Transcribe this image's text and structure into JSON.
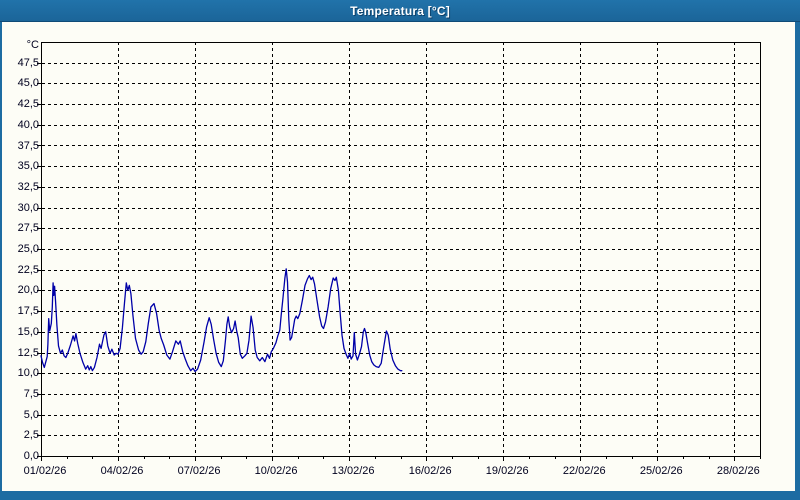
{
  "window": {
    "title": "Temperatura [°C]"
  },
  "colors": {
    "frame_blue": "#1d6ca2",
    "titlebar_border": "#0f4b77",
    "title_text": "#ffffff",
    "content_bg": "#fdfdf6",
    "grid": "#000000",
    "axis": "#000000",
    "tick_text": "#00001e",
    "series_line": "#0000a8"
  },
  "chart_data": {
    "type": "line",
    "title": "Temperatura [°C]",
    "unit_label": "°C",
    "grid": "dashed",
    "legend": "none",
    "y_axis": {
      "min": 0,
      "max": 50,
      "tick_step": 2.5,
      "tick_values": [
        47.5,
        45,
        42.5,
        40,
        37.5,
        35,
        32.5,
        30,
        27.5,
        25,
        22.5,
        20,
        17.5,
        15,
        12.5,
        10,
        7.5,
        5,
        2.5,
        0
      ],
      "tick_labels": [
        "47,5",
        "45,0",
        "42,5",
        "40,0",
        "37,5",
        "35,0",
        "32,5",
        "30,0",
        "27,5",
        "25,0",
        "22,5",
        "20,0",
        "17,5",
        "15,0",
        "12,5",
        "10,0",
        "7,5",
        "5,0",
        "2,5",
        "0,0"
      ]
    },
    "x_axis": {
      "min_day": 0,
      "max_day": 28,
      "minor_tick_every_days": 1,
      "major_tick_every_days": 3,
      "major_tick_days": [
        0,
        3,
        6,
        9,
        12,
        15,
        18,
        21,
        24,
        27
      ],
      "tick_labels": [
        "01/02/26",
        "04/02/26",
        "07/02/26",
        "10/02/26",
        "13/02/26",
        "16/02/26",
        "19/02/26",
        "22/02/26",
        "25/02/26",
        "28/02/26"
      ]
    },
    "series": [
      {
        "name": "Temperatura",
        "color": "#0000a8",
        "points": [
          [
            0,
            12.1
          ],
          [
            0.06,
            11.3
          ],
          [
            0.13,
            10.7
          ],
          [
            0.17,
            11.2
          ],
          [
            0.24,
            12.0
          ],
          [
            0.27,
            13.5
          ],
          [
            0.3,
            16.6
          ],
          [
            0.34,
            15.1
          ],
          [
            0.4,
            16.0
          ],
          [
            0.44,
            18.0
          ],
          [
            0.47,
            20.9
          ],
          [
            0.5,
            19.4
          ],
          [
            0.53,
            20.5
          ],
          [
            0.57,
            18.6
          ],
          [
            0.62,
            15.8
          ],
          [
            0.68,
            13.3
          ],
          [
            0.76,
            12.4
          ],
          [
            0.83,
            12.8
          ],
          [
            0.9,
            12.1
          ],
          [
            0.97,
            11.9
          ],
          [
            1.05,
            12.5
          ],
          [
            1.15,
            13.4
          ],
          [
            1.25,
            14.5
          ],
          [
            1.31,
            13.9
          ],
          [
            1.36,
            14.8
          ],
          [
            1.43,
            13.6
          ],
          [
            1.52,
            12.4
          ],
          [
            1.63,
            11.3
          ],
          [
            1.74,
            10.5
          ],
          [
            1.82,
            10.9
          ],
          [
            1.88,
            10.4
          ],
          [
            1.94,
            10.8
          ],
          [
            2,
            10.3
          ],
          [
            2.08,
            10.7
          ],
          [
            2.18,
            11.9
          ],
          [
            2.28,
            13.5
          ],
          [
            2.34,
            13.0
          ],
          [
            2.45,
            14.6
          ],
          [
            2.52,
            15.0
          ],
          [
            2.6,
            13.3
          ],
          [
            2.69,
            12.4
          ],
          [
            2.76,
            12.9
          ],
          [
            2.85,
            12.2
          ],
          [
            2.93,
            12.4
          ],
          [
            3,
            12.3
          ],
          [
            3.08,
            13.0
          ],
          [
            3.17,
            15.5
          ],
          [
            3.25,
            18.5
          ],
          [
            3.32,
            20.9
          ],
          [
            3.38,
            20.0
          ],
          [
            3.44,
            20.6
          ],
          [
            3.5,
            19.6
          ],
          [
            3.58,
            17.0
          ],
          [
            3.68,
            14.2
          ],
          [
            3.8,
            12.8
          ],
          [
            3.9,
            12.3
          ],
          [
            3.98,
            12.6
          ],
          [
            4.08,
            13.8
          ],
          [
            4.18,
            16.0
          ],
          [
            4.28,
            18.0
          ],
          [
            4.4,
            18.4
          ],
          [
            4.5,
            17.2
          ],
          [
            4.6,
            15.2
          ],
          [
            4.68,
            14.2
          ],
          [
            4.78,
            13.4
          ],
          [
            4.9,
            12.2
          ],
          [
            5.02,
            11.7
          ],
          [
            5.12,
            12.6
          ],
          [
            5.25,
            13.9
          ],
          [
            5.35,
            13.5
          ],
          [
            5.42,
            13.9
          ],
          [
            5.52,
            12.6
          ],
          [
            5.62,
            11.7
          ],
          [
            5.72,
            10.9
          ],
          [
            5.83,
            10.3
          ],
          [
            5.92,
            10.6
          ],
          [
            6,
            10.2
          ],
          [
            6.1,
            10.5
          ],
          [
            6.22,
            11.6
          ],
          [
            6.35,
            13.8
          ],
          [
            6.45,
            15.6
          ],
          [
            6.55,
            16.7
          ],
          [
            6.63,
            15.9
          ],
          [
            6.72,
            14.1
          ],
          [
            6.82,
            12.4
          ],
          [
            6.92,
            11.3
          ],
          [
            7.02,
            10.8
          ],
          [
            7.1,
            11.5
          ],
          [
            7.18,
            13.9
          ],
          [
            7.24,
            15.9
          ],
          [
            7.29,
            16.8
          ],
          [
            7.35,
            15.6
          ],
          [
            7.42,
            14.9
          ],
          [
            7.5,
            15.4
          ],
          [
            7.56,
            16.3
          ],
          [
            7.62,
            15.1
          ],
          [
            7.68,
            14.3
          ],
          [
            7.76,
            12.3
          ],
          [
            7.84,
            11.8
          ],
          [
            7.94,
            12.1
          ],
          [
            8.02,
            12.4
          ],
          [
            8.1,
            14.0
          ],
          [
            8.18,
            16.9
          ],
          [
            8.26,
            15.5
          ],
          [
            8.34,
            12.8
          ],
          [
            8.42,
            11.9
          ],
          [
            8.52,
            11.5
          ],
          [
            8.62,
            11.9
          ],
          [
            8.72,
            11.4
          ],
          [
            8.82,
            12.3
          ],
          [
            8.9,
            11.8
          ],
          [
            8.97,
            12.6
          ],
          [
            9.05,
            13.0
          ],
          [
            9.15,
            13.7
          ],
          [
            9.22,
            14.5
          ],
          [
            9.3,
            15.2
          ],
          [
            9.35,
            16.9
          ],
          [
            9.42,
            19.0
          ],
          [
            9.5,
            21.5
          ],
          [
            9.55,
            22.6
          ],
          [
            9.6,
            21.0
          ],
          [
            9.65,
            16.5
          ],
          [
            9.7,
            14.0
          ],
          [
            9.76,
            14.3
          ],
          [
            9.82,
            15.4
          ],
          [
            9.88,
            16.5
          ],
          [
            9.94,
            16.9
          ],
          [
            10,
            16.6
          ],
          [
            10.08,
            17.2
          ],
          [
            10.18,
            18.8
          ],
          [
            10.28,
            20.6
          ],
          [
            10.38,
            21.4
          ],
          [
            10.45,
            21.8
          ],
          [
            10.52,
            21.3
          ],
          [
            10.58,
            21.6
          ],
          [
            10.65,
            20.8
          ],
          [
            10.75,
            18.8
          ],
          [
            10.85,
            16.8
          ],
          [
            10.93,
            15.7
          ],
          [
            11,
            15.4
          ],
          [
            11.08,
            16.2
          ],
          [
            11.18,
            18.0
          ],
          [
            11.28,
            20.2
          ],
          [
            11.38,
            21.5
          ],
          [
            11.45,
            21.2
          ],
          [
            11.5,
            21.6
          ],
          [
            11.58,
            20.0
          ],
          [
            11.65,
            17.2
          ],
          [
            11.72,
            14.6
          ],
          [
            11.8,
            13.0
          ],
          [
            11.88,
            12.3
          ],
          [
            11.95,
            11.8
          ],
          [
            12.02,
            12.4
          ],
          [
            12.08,
            11.7
          ],
          [
            12.15,
            12.1
          ],
          [
            12.2,
            14.9
          ],
          [
            12.25,
            12.3
          ],
          [
            12.32,
            11.6
          ],
          [
            12.4,
            12.3
          ],
          [
            12.48,
            13.2
          ],
          [
            12.55,
            15.0
          ],
          [
            12.6,
            15.4
          ],
          [
            12.65,
            14.9
          ],
          [
            12.72,
            13.6
          ],
          [
            12.8,
            12.2
          ],
          [
            12.88,
            11.4
          ],
          [
            12.96,
            11.0
          ],
          [
            13.05,
            10.8
          ],
          [
            13.15,
            10.7
          ],
          [
            13.25,
            11.2
          ],
          [
            13.35,
            13.2
          ],
          [
            13.45,
            15.1
          ],
          [
            13.52,
            14.6
          ],
          [
            13.6,
            12.9
          ],
          [
            13.7,
            11.6
          ],
          [
            13.8,
            10.9
          ],
          [
            13.9,
            10.5
          ],
          [
            14,
            10.3
          ],
          [
            14.05,
            10.3
          ]
        ]
      }
    ]
  }
}
